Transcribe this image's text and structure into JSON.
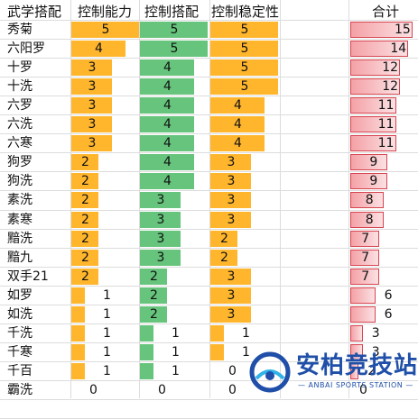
{
  "headers": {
    "name": "武学搭配",
    "col1": "控制能力",
    "col2": "控制搭配",
    "col3": "控制稳定性",
    "total": "合计"
  },
  "colors": {
    "orange": "#FFB62D",
    "green": "#66C47C",
    "pink": "#F4A1A6",
    "pink_border": "#D64550"
  },
  "rows": [
    {
      "name": "秀菊",
      "c1": 5,
      "c2": 5,
      "c3": 5,
      "total": 15
    },
    {
      "name": "六阳罗",
      "c1": 4,
      "c2": 5,
      "c3": 5,
      "total": 14
    },
    {
      "name": "十罗",
      "c1": 3,
      "c2": 4,
      "c3": 5,
      "total": 12
    },
    {
      "name": "十洗",
      "c1": 3,
      "c2": 4,
      "c3": 5,
      "total": 12
    },
    {
      "name": "六罗",
      "c1": 3,
      "c2": 4,
      "c3": 4,
      "total": 11
    },
    {
      "name": "六洗",
      "c1": 3,
      "c2": 4,
      "c3": 4,
      "total": 11
    },
    {
      "name": "六寒",
      "c1": 3,
      "c2": 4,
      "c3": 4,
      "total": 11
    },
    {
      "name": "狗罗",
      "c1": 2,
      "c2": 4,
      "c3": 3,
      "total": 9
    },
    {
      "name": "狗洗",
      "c1": 2,
      "c2": 4,
      "c3": 3,
      "total": 9
    },
    {
      "name": "素洗",
      "c1": 2,
      "c2": 3,
      "c3": 3,
      "total": 8
    },
    {
      "name": "素寒",
      "c1": 2,
      "c2": 3,
      "c3": 3,
      "total": 8
    },
    {
      "name": "黯洗",
      "c1": 2,
      "c2": 3,
      "c3": 2,
      "total": 7
    },
    {
      "name": "黯九",
      "c1": 2,
      "c2": 3,
      "c3": 2,
      "total": 7
    },
    {
      "name": "双手21",
      "c1": 2,
      "c2": 2,
      "c3": 3,
      "total": 7
    },
    {
      "name": "如罗",
      "c1": 1,
      "c2": 2,
      "c3": 3,
      "total": 6
    },
    {
      "name": "如洗",
      "c1": 1,
      "c2": 2,
      "c3": 3,
      "total": 6
    },
    {
      "name": "千洗",
      "c1": 1,
      "c2": 1,
      "c3": 1,
      "total": 3
    },
    {
      "name": "千寒",
      "c1": 1,
      "c2": 1,
      "c3": 1,
      "total": 3
    },
    {
      "name": "千百",
      "c1": 1,
      "c2": 1,
      "c3": 0,
      "total": 2
    },
    {
      "name": "霸洗",
      "c1": 0,
      "c2": 0,
      "c3": 0,
      "total": 0
    }
  ],
  "watermark": {
    "title": "安柏竞技站",
    "subtitle": "— ANBAI SPORTS STATION —"
  }
}
